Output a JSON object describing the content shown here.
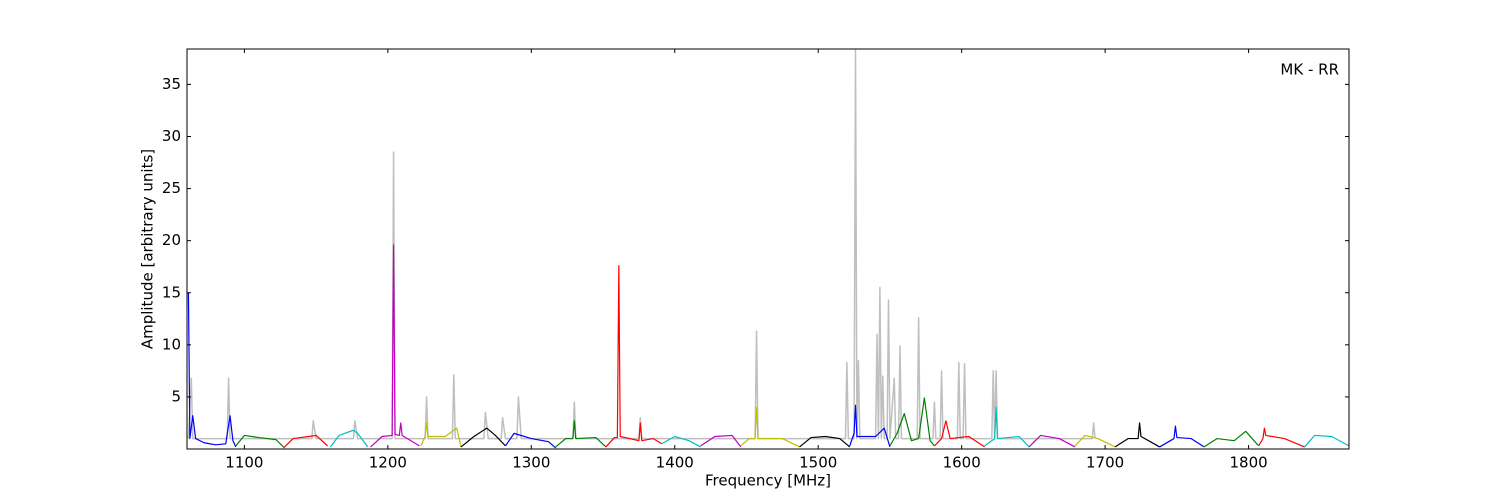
{
  "chart_data": {
    "type": "line",
    "annotation": "MK - RR",
    "xlabel": "Frequency [MHz]",
    "ylabel": "Amplitude [arbitrary units]",
    "xlim": [
      1060,
      1870
    ],
    "ylim": [
      0,
      38.4
    ],
    "xticks": [
      1100,
      1200,
      1300,
      1400,
      1500,
      1600,
      1700,
      1800
    ],
    "yticks": [
      5,
      10,
      15,
      20,
      25,
      30,
      35
    ],
    "series": [
      {
        "color": "#bfbfbf",
        "x": [
          1061,
          1063,
          1064,
          1088,
          1089,
          1090,
          1147,
          1148,
          1150,
          1176,
          1177,
          1179,
          1203,
          1204,
          1205,
          1226,
          1227,
          1228,
          1245,
          1246,
          1247,
          1267,
          1268,
          1270,
          1279,
          1280,
          1282,
          1290,
          1291,
          1293,
          1329,
          1330,
          1331,
          1375,
          1376,
          1377,
          1456,
          1457,
          1458,
          1519,
          1520,
          1521,
          1525,
          1526,
          1527,
          1528,
          1529,
          1540,
          1541,
          1542,
          1543,
          1544,
          1545,
          1546,
          1548,
          1549,
          1550,
          1553,
          1554,
          1556,
          1557,
          1558,
          1569,
          1570,
          1571,
          1580,
          1581,
          1582,
          1585,
          1586,
          1587,
          1597,
          1598,
          1599,
          1601,
          1602,
          1603,
          1621,
          1622,
          1623,
          1624,
          1625,
          1691,
          1692,
          1693
        ],
        "values": [
          1,
          6.8,
          1,
          1,
          6.8,
          1,
          1,
          2.7,
          1,
          1,
          2.7,
          1,
          1,
          28.5,
          1,
          1,
          5,
          1,
          1,
          7.1,
          1,
          1,
          3.5,
          1,
          1,
          3,
          1,
          1,
          5,
          1,
          1,
          4.5,
          1,
          1,
          3,
          1,
          1,
          11.3,
          1,
          1,
          8.3,
          1,
          1,
          38.3,
          1,
          8.5,
          1,
          1,
          11,
          1,
          15.5,
          1,
          7,
          1,
          1,
          14.3,
          1,
          6.8,
          1,
          1,
          9.9,
          1,
          1,
          12.6,
          1,
          1,
          4.5,
          1,
          1,
          7.5,
          1,
          1,
          8.3,
          1,
          1,
          8.2,
          1,
          1,
          7.5,
          1,
          7.5,
          1,
          1,
          2.5,
          1
        ]
      },
      {
        "color": "#0000ff",
        "x": [
          1061,
          1062,
          1064,
          1066,
          1072,
          1080,
          1087,
          1090,
          1092,
          1094
        ],
        "values": [
          15,
          1,
          3.2,
          1,
          0.6,
          0.4,
          0.5,
          3.2,
          0.8,
          0.2
        ]
      },
      {
        "color": "#007f00",
        "x": [
          1094,
          1100,
          1110,
          1122,
          1128
        ],
        "values": [
          0.3,
          1.3,
          1.1,
          0.9,
          0.1
        ]
      },
      {
        "color": "#ff0000",
        "x": [
          1128,
          1134,
          1145,
          1150,
          1158
        ],
        "values": [
          0.2,
          1,
          1.2,
          1.3,
          0.3
        ]
      },
      {
        "color": "#00bfbf",
        "x": [
          1160,
          1166,
          1176,
          1179,
          1186
        ],
        "values": [
          0.2,
          1.3,
          1.8,
          1.5,
          0.2
        ]
      },
      {
        "color": "#bf00bf",
        "x": [
          1188,
          1196,
          1203,
          1204,
          1205,
          1208,
          1209,
          1210,
          1222
        ],
        "values": [
          0.2,
          1.2,
          1.3,
          19.6,
          1.4,
          1.3,
          2.5,
          1.3,
          0.3
        ]
      },
      {
        "color": "#bfbf00",
        "x": [
          1223,
          1226,
          1227,
          1228,
          1240,
          1248,
          1251
        ],
        "values": [
          0.3,
          1.2,
          2.5,
          1.2,
          1.2,
          2,
          0.2
        ]
      },
      {
        "color": "#000000",
        "x": [
          1251,
          1260,
          1269,
          1275,
          1282
        ],
        "values": [
          0.2,
          1.2,
          2,
          1.3,
          0.3
        ]
      },
      {
        "color": "#0000ff",
        "x": [
          1282,
          1288,
          1300,
          1312,
          1317
        ],
        "values": [
          0.3,
          1.5,
          1,
          0.7,
          0.1
        ]
      },
      {
        "color": "#007f00",
        "x": [
          1317,
          1324,
          1329,
          1330,
          1331,
          1345,
          1352
        ],
        "values": [
          0.2,
          1,
          1,
          2.7,
          1,
          1.1,
          0.2
        ]
      },
      {
        "color": "#ff0000",
        "x": [
          1352,
          1358,
          1360,
          1361,
          1362,
          1375,
          1376,
          1377,
          1385,
          1391
        ],
        "values": [
          0.2,
          1.1,
          1.1,
          17.6,
          1.2,
          0.8,
          2.5,
          0.8,
          1,
          0.5
        ]
      },
      {
        "color": "#00bfbf",
        "x": [
          1391,
          1400,
          1410,
          1418
        ],
        "values": [
          0.5,
          1.2,
          0.8,
          0.2
        ]
      },
      {
        "color": "#bf00bf",
        "x": [
          1418,
          1428,
          1440,
          1446
        ],
        "values": [
          0.3,
          1.2,
          1.3,
          0.2
        ]
      },
      {
        "color": "#bfbf00",
        "x": [
          1446,
          1452,
          1456,
          1457,
          1458,
          1475,
          1487
        ],
        "values": [
          0.3,
          1,
          1,
          4,
          1,
          1,
          0.2
        ]
      },
      {
        "color": "#000000",
        "x": [
          1487,
          1495,
          1505,
          1515,
          1522
        ],
        "values": [
          0.2,
          1.1,
          1.2,
          1,
          0.2
        ]
      },
      {
        "color": "#0000ff",
        "x": [
          1522,
          1525,
          1526,
          1527,
          1540,
          1546,
          1550
        ],
        "values": [
          0.3,
          1.5,
          4.2,
          1.2,
          1.2,
          2,
          0.2
        ]
      },
      {
        "color": "#007f00",
        "x": [
          1550,
          1555,
          1560,
          1565,
          1570,
          1574,
          1578,
          1581
        ],
        "values": [
          0.3,
          1.5,
          3.4,
          0.8,
          1,
          4.9,
          0.8,
          0.3
        ]
      },
      {
        "color": "#ff0000",
        "x": [
          1581,
          1586,
          1589,
          1592,
          1605,
          1616
        ],
        "values": [
          0.3,
          1,
          2.7,
          1,
          1.2,
          0.2
        ]
      },
      {
        "color": "#00bfbf",
        "x": [
          1616,
          1623,
          1624,
          1625,
          1640,
          1647
        ],
        "values": [
          0.3,
          1,
          4,
          1,
          1.2,
          0.2
        ]
      },
      {
        "color": "#bf00bf",
        "x": [
          1647,
          1655,
          1668,
          1679
        ],
        "values": [
          0.2,
          1.3,
          1,
          0.2
        ]
      },
      {
        "color": "#bfbf00",
        "x": [
          1679,
          1686,
          1695,
          1707
        ],
        "values": [
          0.3,
          1.3,
          1,
          0.2
        ]
      },
      {
        "color": "#000000",
        "x": [
          1707,
          1716,
          1723,
          1724,
          1725,
          1738
        ],
        "values": [
          0.2,
          1,
          1,
          2.5,
          1.2,
          0.2
        ]
      },
      {
        "color": "#0000ff",
        "x": [
          1738,
          1748,
          1749,
          1750,
          1760,
          1769
        ],
        "values": [
          0.2,
          1,
          2.2,
          1.1,
          1,
          0.2
        ]
      },
      {
        "color": "#007f00",
        "x": [
          1769,
          1778,
          1790,
          1798,
          1807
        ],
        "values": [
          0.2,
          1,
          0.8,
          1.7,
          0.3
        ]
      },
      {
        "color": "#ff0000",
        "x": [
          1807,
          1810,
          1811,
          1812,
          1825,
          1839
        ],
        "values": [
          0.3,
          1,
          2,
          1.3,
          1,
          0.2
        ]
      },
      {
        "color": "#00bfbf",
        "x": [
          1839,
          1846,
          1858,
          1870
        ],
        "values": [
          0.2,
          1.3,
          1.2,
          0.3
        ]
      }
    ]
  }
}
